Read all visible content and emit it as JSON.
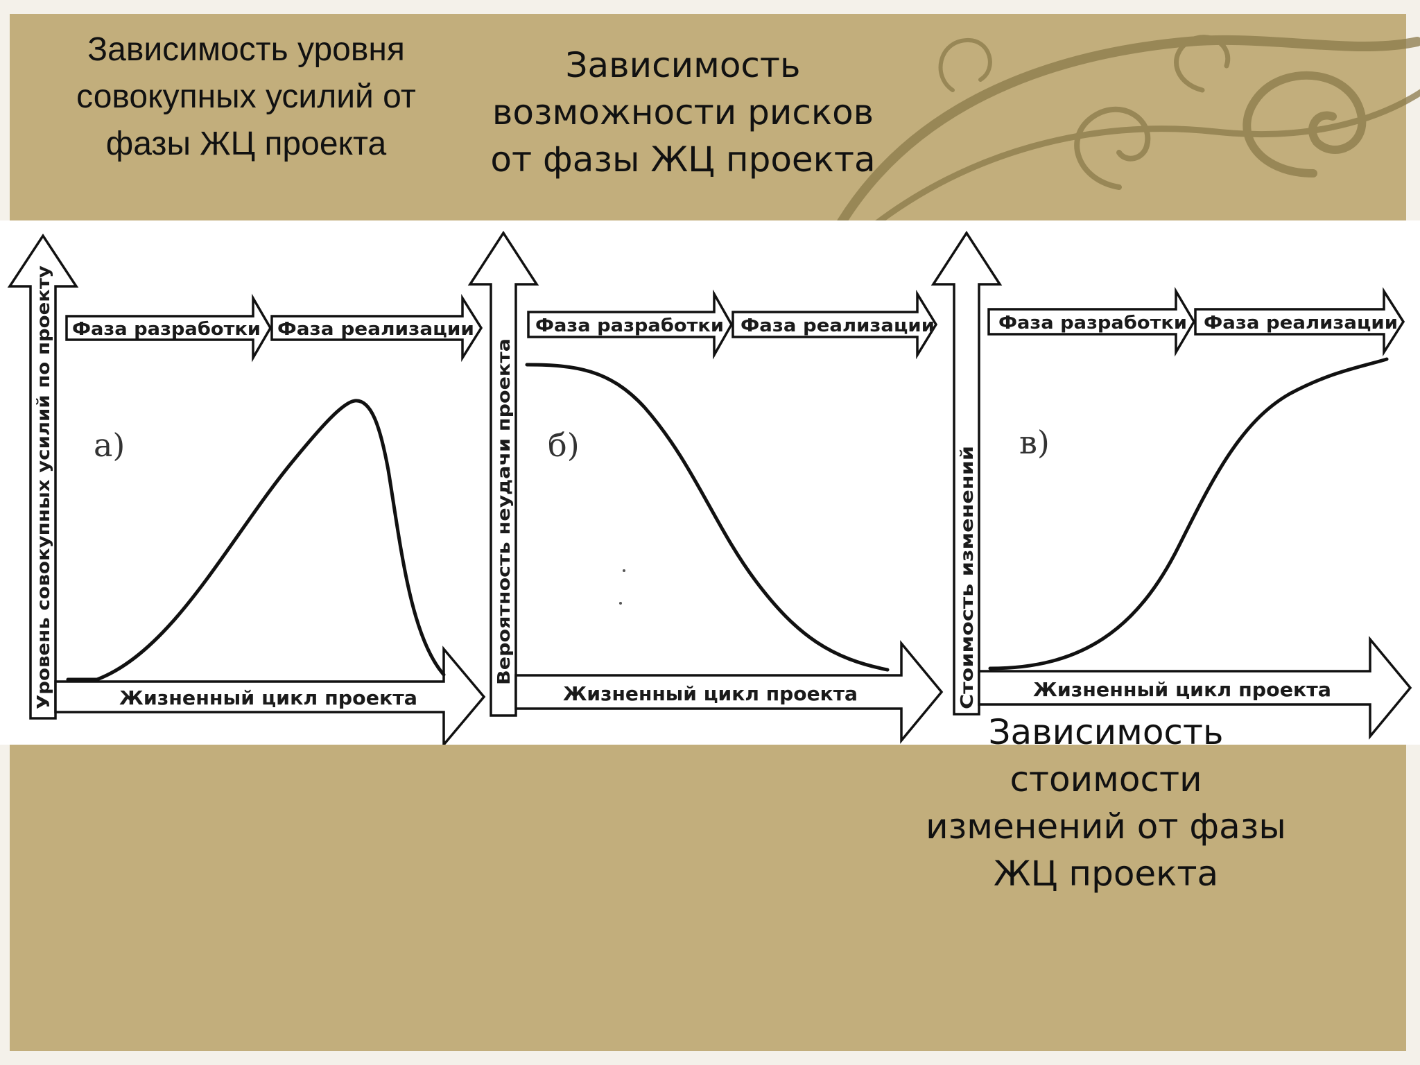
{
  "captions": {
    "a": [
      "Зависимость уровня",
      "совокупных усилий от",
      "фазы ЖЦ проекта"
    ],
    "b": [
      "Зависимость",
      "возможности рисков",
      "от фазы ЖЦ проекта"
    ],
    "c": [
      "Зависимость",
      "стоимости",
      "изменений от фазы",
      "ЖЦ проекта"
    ]
  },
  "colors": {
    "slide_background": "#c2ae7c",
    "figure_background": "#ffffff",
    "swirl": "#8b7a4a"
  },
  "panels": [
    {
      "marker": "а)",
      "y_axis_label": "Уровень совокупных усилий по проекту",
      "x_axis_label": "Жизненный цикл проекта",
      "phase_1": "Фаза разработки",
      "phase_2": "Фаза реализации",
      "curve_shape": "rises from low, peaks late in realization phase, drops sharply"
    },
    {
      "marker": "б)",
      "y_axis_label": "Вероятность неудачи проекта",
      "x_axis_label": "Жизненный цикл проекта",
      "phase_1": "Фаза разработки",
      "phase_2": "Фаза реализации",
      "curve_shape": "starts high, declines along an S-curve to low"
    },
    {
      "marker": "в)",
      "y_axis_label": "Стоимость изменений",
      "x_axis_label": "Жизненный цикл проекта",
      "phase_1": "Фаза разработки",
      "phase_2": "Фаза реализации",
      "curve_shape": "starts low, rises along an S-curve to high"
    }
  ]
}
